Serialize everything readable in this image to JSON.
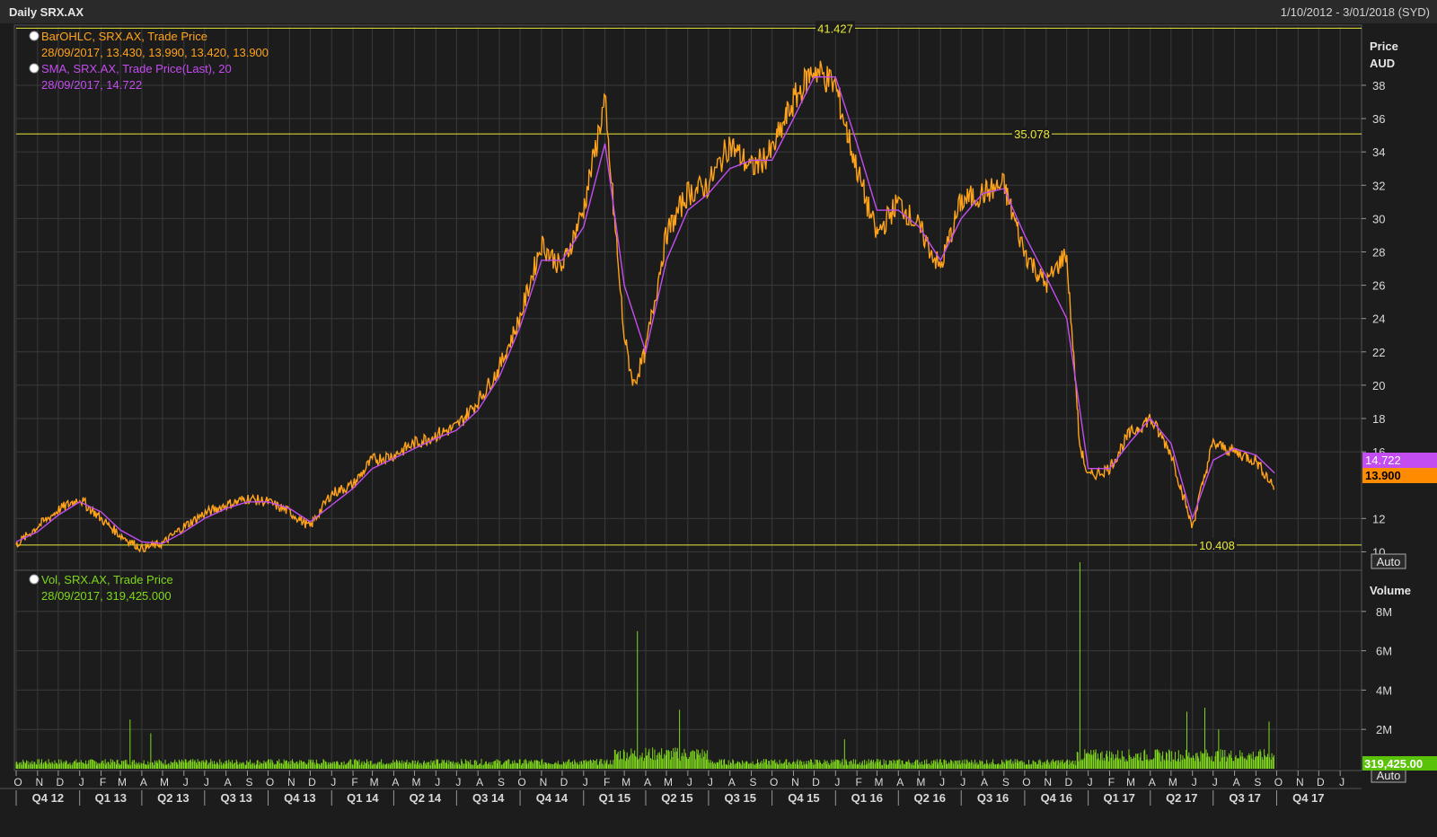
{
  "header": {
    "title": "Daily SRX.AX",
    "date_range": "1/10/2012 - 3/01/2018 (SYD)"
  },
  "legend": {
    "bar": {
      "line1": "BarOHLC, SRX.AX, Trade Price",
      "line2": "28/09/2017, 13.430, 13.990, 13.420, 13.900",
      "color": "#ffa31a"
    },
    "sma": {
      "line1": "SMA, SRX.AX, Trade Price(Last),  20",
      "line2": "28/09/2017, 14.722",
      "color": "#c34df0"
    },
    "vol": {
      "line1": "Vol, SRX.AX, Trade Price",
      "line2": "28/09/2017, 319,425.000",
      "color": "#7fd81a"
    }
  },
  "price_axis": {
    "title_line1": "Price",
    "title_line2": "AUD",
    "ticks": [
      "38",
      "36",
      "34",
      "32",
      "30",
      "28",
      "26",
      "24",
      "22",
      "20",
      "18",
      "16",
      "12",
      "10"
    ],
    "auto_label": "Auto",
    "last_sma_tag": "14.722",
    "last_price_tag": "13.900"
  },
  "volume_axis": {
    "title": "Volume",
    "ticks": [
      "8M",
      "6M",
      "4M",
      "2M"
    ],
    "auto_label": "Auto",
    "last_volume_tag": "319,425.00"
  },
  "time_axis": {
    "months": [
      "O",
      "N",
      "D",
      "J",
      "F",
      "M",
      "A",
      "M",
      "J",
      "J",
      "A",
      "S",
      "O",
      "N",
      "D",
      "J",
      "F",
      "M",
      "A",
      "M",
      "J",
      "J",
      "A",
      "S",
      "O",
      "N",
      "D",
      "J",
      "F",
      "M",
      "A",
      "M",
      "J",
      "J",
      "A",
      "S",
      "O",
      "N",
      "D",
      "J",
      "F",
      "M",
      "A",
      "M",
      "J",
      "J",
      "A",
      "S",
      "O",
      "N",
      "D",
      "J",
      "F",
      "M",
      "A",
      "M",
      "J",
      "J",
      "A",
      "S",
      "O",
      "N",
      "D",
      "J"
    ],
    "quarters": [
      "Q4 12",
      "Q1 13",
      "Q2 13",
      "Q3 13",
      "Q4 13",
      "Q1 14",
      "Q2 14",
      "Q3 14",
      "Q4 14",
      "Q1 15",
      "Q2 15",
      "Q3 15",
      "Q4 15",
      "Q1 16",
      "Q2 16",
      "Q3 16",
      "Q4 16",
      "Q1 17",
      "Q2 17",
      "Q3 17",
      "Q4 17"
    ]
  },
  "colors": {
    "background": "#1c1c1c",
    "grid": "#3a3a3a",
    "price": "#ffa31a",
    "sma": "#c34df0",
    "volume": "#7fd81a",
    "reference_lines": "#e8e83a",
    "axis_text": "#d9d9d9"
  },
  "chart_data": {
    "type": "line",
    "title": "Daily SRX.AX",
    "ylabel": "Price AUD",
    "ylim": [
      9,
      41.5
    ],
    "volume_ylim": [
      0,
      10000000
    ],
    "reference_levels": [
      {
        "label": "41.427",
        "value": 41.427
      },
      {
        "label": "35.078",
        "value": 35.078
      },
      {
        "label": "10.408",
        "value": 10.408
      }
    ],
    "series": [
      {
        "name": "BarOHLC, SRX.AX, Trade Price",
        "x": [
          "2012-10-01",
          "2012-11-01",
          "2012-12-01",
          "2013-01-01",
          "2013-02-01",
          "2013-03-01",
          "2013-04-01",
          "2013-05-01",
          "2013-06-01",
          "2013-07-01",
          "2013-08-01",
          "2013-09-01",
          "2013-10-01",
          "2013-11-01",
          "2013-12-01",
          "2014-01-01",
          "2014-02-01",
          "2014-03-01",
          "2014-04-01",
          "2014-05-01",
          "2014-06-01",
          "2014-07-01",
          "2014-08-01",
          "2014-09-01",
          "2014-10-01",
          "2014-11-01",
          "2014-12-01",
          "2015-01-01",
          "2015-02-01",
          "2015-03-01",
          "2015-03-15",
          "2015-04-01",
          "2015-05-01",
          "2015-06-01",
          "2015-07-01",
          "2015-08-01",
          "2015-09-01",
          "2015-10-01",
          "2015-11-01",
          "2015-12-01",
          "2016-01-01",
          "2016-02-01",
          "2016-03-01",
          "2016-04-01",
          "2016-05-01",
          "2016-06-01",
          "2016-07-01",
          "2016-08-01",
          "2016-09-01",
          "2016-10-01",
          "2016-11-01",
          "2016-12-01",
          "2016-12-20",
          "2017-01-01",
          "2017-02-01",
          "2017-03-01",
          "2017-04-01",
          "2017-05-01",
          "2017-06-01",
          "2017-07-01",
          "2017-08-01",
          "2017-09-01",
          "2017-09-28"
        ],
        "values": [
          10.4,
          11.5,
          12.5,
          13.2,
          12.0,
          11.0,
          10.2,
          10.5,
          11.5,
          12.3,
          12.8,
          13.2,
          13.0,
          12.4,
          11.5,
          13.5,
          14.0,
          15.5,
          15.8,
          16.5,
          17.0,
          17.5,
          19.0,
          21.0,
          24.0,
          28.5,
          27.0,
          30.5,
          37.0,
          23.0,
          20.0,
          22.0,
          29.0,
          31.5,
          32.0,
          34.5,
          33.0,
          34.0,
          37.0,
          39.0,
          38.0,
          33.0,
          29.0,
          31.0,
          29.5,
          27.0,
          31.0,
          31.5,
          32.0,
          28.0,
          26.0,
          28.0,
          16.5,
          14.5,
          15.0,
          17.0,
          18.0,
          16.0,
          11.5,
          16.5,
          16.0,
          15.5,
          13.9
        ]
      },
      {
        "name": "SMA, SRX.AX, Trade Price(Last),  20",
        "x": [
          "2012-10-01",
          "2012-11-01",
          "2012-12-01",
          "2013-01-01",
          "2013-02-01",
          "2013-03-01",
          "2013-04-01",
          "2013-05-01",
          "2013-06-01",
          "2013-07-01",
          "2013-08-01",
          "2013-09-01",
          "2013-10-01",
          "2013-11-01",
          "2013-12-01",
          "2014-01-01",
          "2014-02-01",
          "2014-03-01",
          "2014-04-01",
          "2014-05-01",
          "2014-06-01",
          "2014-07-01",
          "2014-08-01",
          "2014-09-01",
          "2014-10-01",
          "2014-11-01",
          "2014-12-01",
          "2015-01-01",
          "2015-02-01",
          "2015-03-01",
          "2015-04-01",
          "2015-05-01",
          "2015-06-01",
          "2015-07-01",
          "2015-08-01",
          "2015-09-01",
          "2015-10-01",
          "2015-11-01",
          "2015-12-01",
          "2016-01-01",
          "2016-02-01",
          "2016-03-01",
          "2016-04-01",
          "2016-05-01",
          "2016-06-01",
          "2016-07-01",
          "2016-08-01",
          "2016-09-01",
          "2016-10-01",
          "2016-11-01",
          "2016-12-01",
          "2017-01-01",
          "2017-02-01",
          "2017-03-01",
          "2017-04-01",
          "2017-05-01",
          "2017-06-01",
          "2017-07-01",
          "2017-08-01",
          "2017-09-01",
          "2017-09-28"
        ],
        "values": [
          10.6,
          11.2,
          12.2,
          13.0,
          12.4,
          11.3,
          10.6,
          10.5,
          11.2,
          12.0,
          12.6,
          13.0,
          13.0,
          12.6,
          11.8,
          12.8,
          13.8,
          15.0,
          15.6,
          16.2,
          16.8,
          17.3,
          18.5,
          20.5,
          23.5,
          27.5,
          27.5,
          29.5,
          34.5,
          26.0,
          22.0,
          27.5,
          30.5,
          31.5,
          33.0,
          33.5,
          33.5,
          36.0,
          38.5,
          38.5,
          34.5,
          30.5,
          30.5,
          29.5,
          27.5,
          30.0,
          31.5,
          31.8,
          29.0,
          26.5,
          24.0,
          15.0,
          15.0,
          16.5,
          18.0,
          16.5,
          12.0,
          15.5,
          16.2,
          15.8,
          14.722
        ]
      }
    ],
    "volume_series": {
      "name": "Vol, SRX.AX, Trade Price",
      "x": [
        "2013-03-15",
        "2013-04-15",
        "2015-03-20",
        "2015-05-20",
        "2016-01-15",
        "2016-12-20",
        "2017-05-25",
        "2017-06-20",
        "2017-07-10",
        "2017-09-20",
        "2017-09-28"
      ],
      "values": [
        2500000,
        1800000,
        7000000,
        3000000,
        1500000,
        10500000,
        2900000,
        3100000,
        2000000,
        2400000,
        319425
      ]
    }
  }
}
